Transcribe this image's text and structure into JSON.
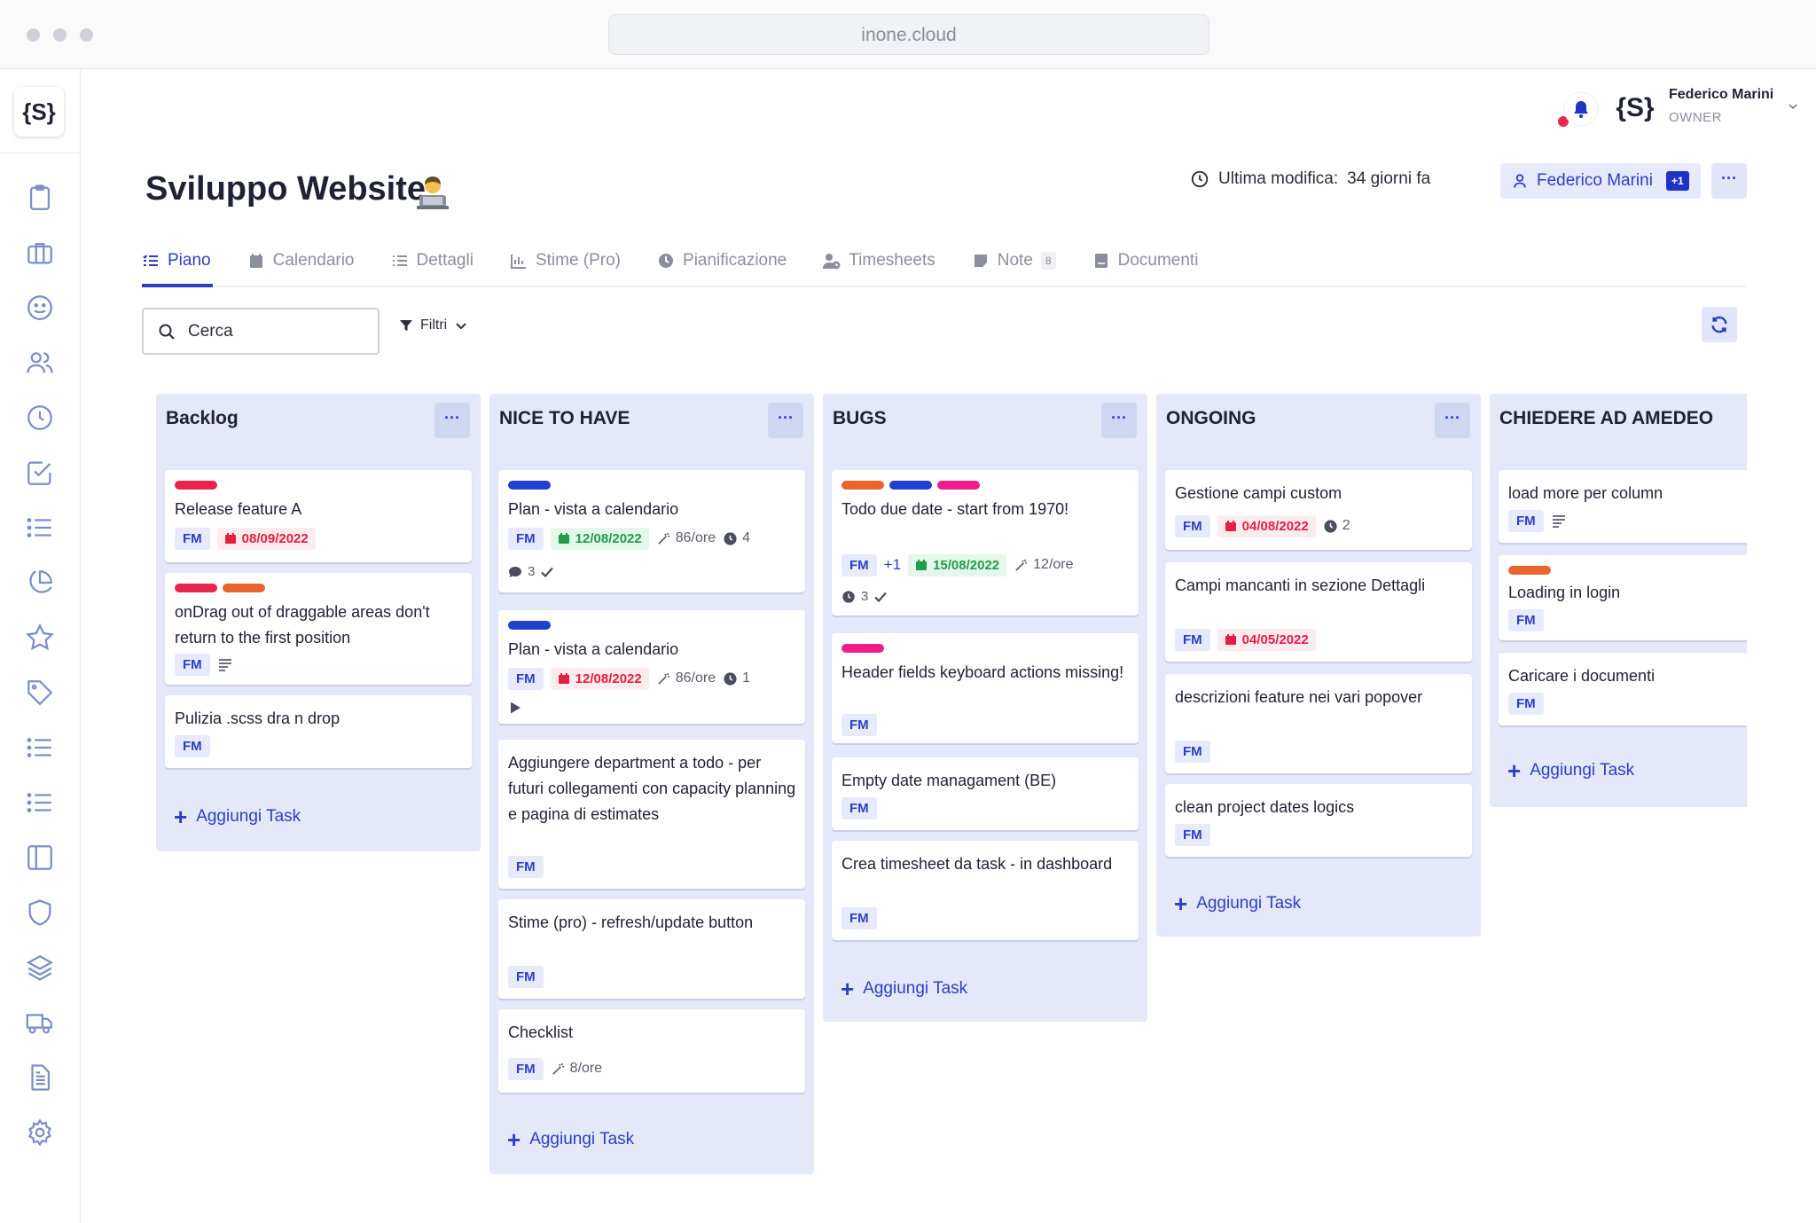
{
  "browser": {
    "url": "inone.cloud"
  },
  "app": {
    "logo": "{S}"
  },
  "user": {
    "name": "Federico Marini",
    "role": "OWNER",
    "avatar": "{S}"
  },
  "page": {
    "title": "Sviluppo Website",
    "last_modified_label": "Ultima modifica:",
    "last_modified_value": "34 giorni fa"
  },
  "members_button": {
    "label": "Federico Marini",
    "extra": "+1"
  },
  "more_label": "···",
  "tabs": [
    {
      "label": "Piano",
      "icon": "list-check-icon"
    },
    {
      "label": "Calendario",
      "icon": "calendar-icon"
    },
    {
      "label": "Dettagli",
      "icon": "list-icon"
    },
    {
      "label": "Stime (Pro)",
      "icon": "bar-chart-icon"
    },
    {
      "label": "Pianificazione",
      "icon": "clock-icon"
    },
    {
      "label": "Timesheets",
      "icon": "user-clock-icon"
    },
    {
      "label": "Note",
      "icon": "note-icon",
      "count": "8"
    },
    {
      "label": "Documenti",
      "icon": "document-icon"
    }
  ],
  "search": {
    "placeholder": "Cerca"
  },
  "filters_label": "Filtri",
  "add_task_label": "Aggiungi Task",
  "colors": {
    "red": "#e8264d",
    "orange": "#e8662d",
    "blue": "#2340cc",
    "pink": "#ec1f8a",
    "accent": "#2a3fc4"
  },
  "columns": [
    {
      "title": "Backlog",
      "cards": [
        {
          "title": "Release feature A",
          "labels": [
            "red"
          ],
          "assignee": "FM",
          "date": "08/09/2022"
        },
        {
          "title": "onDrag out of draggable areas don't return to the first position",
          "labels": [
            "red",
            "orange"
          ],
          "assignee": "FM"
        },
        {
          "title": "Pulizia .scss dra n drop",
          "assignee": "FM"
        }
      ]
    },
    {
      "title": "NICE TO HAVE",
      "cards": [
        {
          "title": "Plan - vista a calendario",
          "labels": [
            "blue"
          ],
          "assignee": "FM",
          "date": "12/08/2022",
          "estimate": "86/ore",
          "timers": "4",
          "comments": "3"
        },
        {
          "title": "Plan - vista a calendario",
          "labels": [
            "blue"
          ],
          "assignee": "FM",
          "date": "12/08/2022",
          "estimate": "86/ore",
          "timers": "1"
        },
        {
          "title": "Aggiungere department a todo - per futuri collegamenti con capacity planning e pagina di estimates",
          "assignee": "FM"
        },
        {
          "title": "Stime (pro) - refresh/update button",
          "assignee": "FM"
        },
        {
          "title": "Checklist",
          "assignee": "FM",
          "estimate": "8/ore"
        }
      ]
    },
    {
      "title": "BUGS",
      "cards": [
        {
          "title": "Todo due date - start from 1970!",
          "labels": [
            "orange",
            "blue",
            "pink"
          ],
          "assignee": "FM",
          "extra": "+1",
          "date": "15/08/2022",
          "estimate": "12/ore",
          "timers": "3"
        },
        {
          "title": "Header fields keyboard actions missing!",
          "labels": [
            "pink"
          ],
          "assignee": "FM"
        },
        {
          "title": "Empty date managament (BE)",
          "assignee": "FM"
        },
        {
          "title": "Crea timesheet da task - in dashboard",
          "assignee": "FM"
        }
      ]
    },
    {
      "title": "ONGOING",
      "cards": [
        {
          "title": "Gestione campi custom",
          "assignee": "FM",
          "date": "04/08/2022",
          "timers": "2"
        },
        {
          "title": "Campi mancanti in sezione Dettagli",
          "assignee": "FM",
          "date": "04/05/2022"
        },
        {
          "title": "descrizioni feature nei vari popover",
          "assignee": "FM"
        },
        {
          "title": "clean project dates logics",
          "assignee": "FM"
        }
      ]
    },
    {
      "title": "CHIEDERE AD AMEDEO",
      "cards": [
        {
          "title": "load more per column",
          "assignee": "FM"
        },
        {
          "title": "Loading in login",
          "labels": [
            "orange"
          ],
          "assignee": "FM"
        },
        {
          "title": "Caricare i documenti",
          "assignee": "FM"
        }
      ]
    }
  ]
}
